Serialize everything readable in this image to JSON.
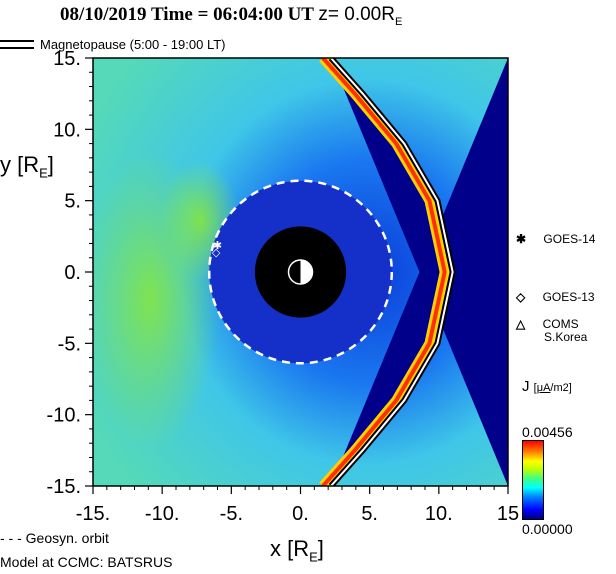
{
  "title": {
    "main": "08/10/2019 Time = 06:04:00 UT",
    "z_label": "z= 0.00R",
    "z_sub": "E"
  },
  "legend": {
    "magnetopause": "Magnetopause (5:00 - 19:00 LT)",
    "geosyn": "Geosyn. orbit"
  },
  "footer": "Model at CCMC: BATSRUS",
  "axes": {
    "ylabel": "y [R",
    "ylabel_sub": "E",
    "xlabel": "x [R",
    "xlabel_sub": "E"
  },
  "satellites": [
    {
      "symbol": "✱",
      "name": "GOES-14",
      "icon": "asterisk-icon"
    },
    {
      "symbol": "◇",
      "name": "GOES-13",
      "icon": "diamond-icon"
    },
    {
      "symbol": "△",
      "name": "COMS",
      "name2": "S.Korea",
      "icon": "triangle-icon"
    }
  ],
  "colorbar": {
    "label": "J",
    "unit_num": "μA",
    "unit_den": "m2",
    "max": "0.00456",
    "min": "0.00000"
  },
  "chart_data": {
    "type": "heatmap",
    "quantity": "J",
    "xlabel": "x [R_E]",
    "ylabel": "y [R_E]",
    "xlim": [
      -15,
      15
    ],
    "ylim": [
      -15,
      15
    ],
    "x_ticks": [
      "-15.",
      "-10.",
      "-5.",
      "0.",
      "5.",
      "10.",
      "15"
    ],
    "y_ticks": [
      "15.",
      "10.",
      "5.",
      "0.",
      "-5.",
      "-10.",
      "-15."
    ],
    "colorscale_range": [
      0.0,
      0.00456
    ],
    "earth_disc_radius": 3.3,
    "geosyn_orbit_radius": 6.6,
    "magnetopause": [
      [
        2.2,
        -15
      ],
      [
        4.5,
        -12.5
      ],
      [
        7.5,
        -9
      ],
      [
        9.9,
        -5
      ],
      [
        11.0,
        0
      ],
      [
        9.9,
        5
      ],
      [
        7.5,
        9
      ],
      [
        4.5,
        12.5
      ],
      [
        2.2,
        15
      ]
    ],
    "satellite_positions": [
      {
        "name": "GOES-14",
        "x": -6.0,
        "y": 1.9
      },
      {
        "name": "GOES-13",
        "x": -6.1,
        "y": 1.4
      }
    ]
  }
}
